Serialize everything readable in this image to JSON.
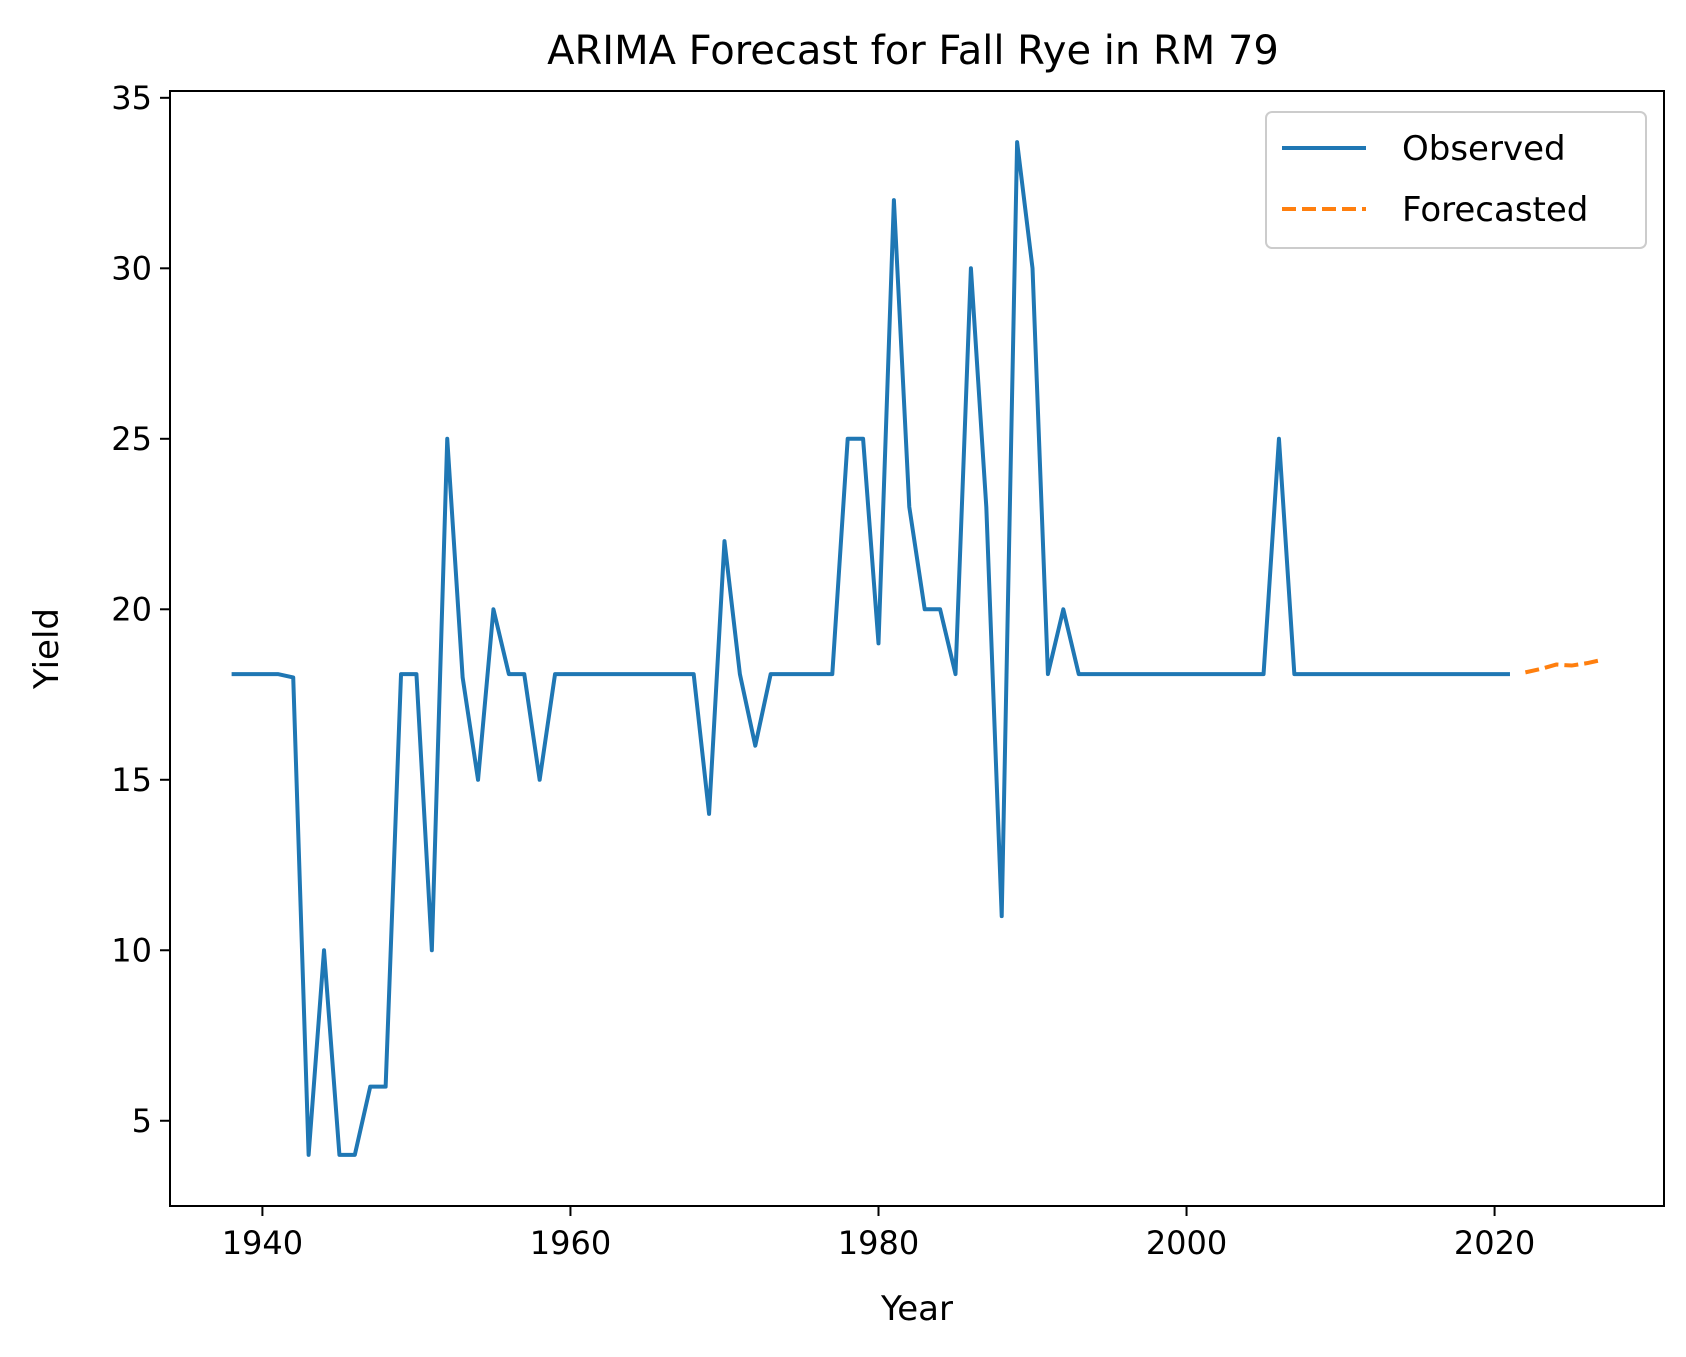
{
  "chart_data": {
    "type": "line",
    "title": "ARIMA Forecast for Fall Rye in RM 79",
    "xlabel": "Year",
    "ylabel": "Yield",
    "xlim": [
      1934,
      2031
    ],
    "ylim": [
      2.5,
      35.2
    ],
    "xticks": [
      1940,
      1960,
      1980,
      2000,
      2020
    ],
    "yticks": [
      5,
      10,
      15,
      20,
      25,
      30,
      35
    ],
    "grid": false,
    "legend_position": "top-right",
    "colors": {
      "observed": "#1f77b4",
      "forecasted": "#ff7f0e"
    },
    "series": [
      {
        "name": "Observed",
        "style": "solid",
        "x": [
          1938,
          1939,
          1940,
          1941,
          1942,
          1943,
          1944,
          1945,
          1946,
          1947,
          1948,
          1949,
          1950,
          1951,
          1952,
          1953,
          1954,
          1955,
          1956,
          1957,
          1958,
          1959,
          1960,
          1961,
          1962,
          1963,
          1964,
          1965,
          1966,
          1967,
          1968,
          1969,
          1970,
          1971,
          1972,
          1973,
          1974,
          1975,
          1976,
          1977,
          1978,
          1979,
          1980,
          1981,
          1982,
          1983,
          1984,
          1985,
          1986,
          1987,
          1988,
          1989,
          1990,
          1991,
          1992,
          1993,
          1994,
          1995,
          1996,
          1997,
          1998,
          1999,
          2000,
          2001,
          2002,
          2003,
          2004,
          2005,
          2006,
          2007,
          2008,
          2009,
          2010,
          2011,
          2012,
          2013,
          2014,
          2015,
          2016,
          2017,
          2018,
          2019,
          2020,
          2021
        ],
        "y": [
          18.1,
          18.1,
          18.1,
          18.1,
          18,
          4,
          10,
          4,
          4,
          6,
          6,
          18.1,
          18.1,
          10,
          25,
          18,
          15,
          20,
          18.1,
          18.1,
          15,
          18.1,
          18.1,
          18.1,
          18.1,
          18.1,
          18.1,
          18.1,
          18.1,
          18.1,
          18.1,
          14,
          22,
          18.1,
          16,
          18.1,
          18.1,
          18.1,
          18.1,
          18.1,
          25,
          25,
          19,
          32,
          23,
          20,
          20,
          18.1,
          30,
          23,
          11,
          33.7,
          30,
          18.1,
          20,
          18.1,
          18.1,
          18.1,
          18.1,
          18.1,
          18.1,
          18.1,
          18.1,
          18.1,
          18.1,
          18.1,
          18.1,
          18.1,
          25,
          18.1,
          18.1,
          18.1,
          18.1,
          18.1,
          18.1,
          18.1,
          18.1,
          18.1,
          18.1,
          18.1,
          18.1,
          18.1,
          18.1,
          18.1
        ]
      },
      {
        "name": "Forecasted",
        "style": "dashed",
        "x": [
          2022,
          2023,
          2024,
          2025,
          2026,
          2027
        ],
        "y": [
          18.15,
          18.25,
          18.38,
          18.35,
          18.42,
          18.52
        ]
      }
    ]
  }
}
